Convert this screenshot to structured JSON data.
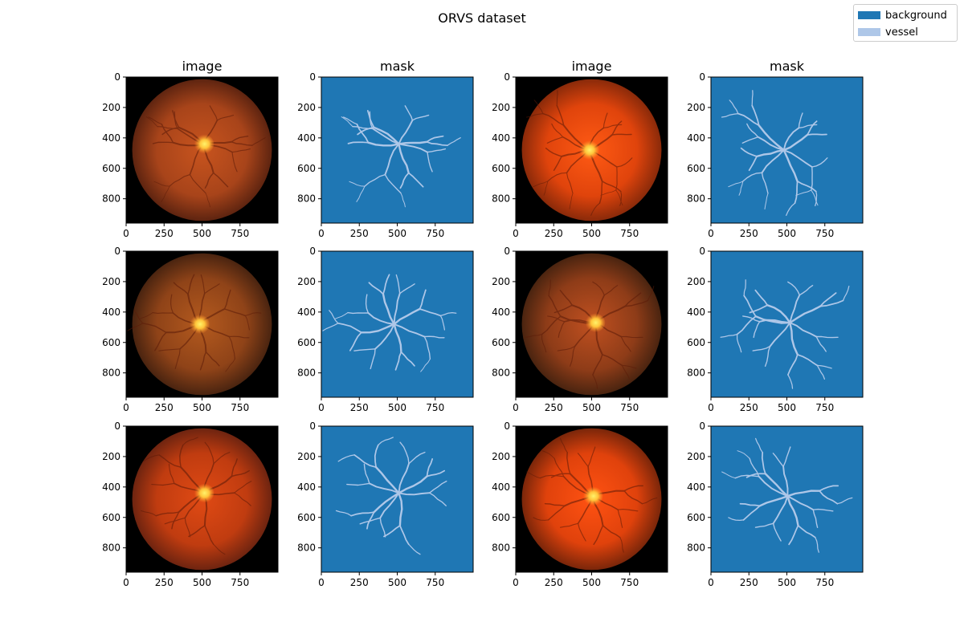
{
  "figure": {
    "title": "ORVS dataset"
  },
  "legend": {
    "placement": "top-right",
    "items": [
      {
        "label": "background",
        "color": "#1f77b4"
      },
      {
        "label": "vessel",
        "color": "#aec7e8"
      }
    ]
  },
  "chart_data": [
    {
      "type": "heatmap",
      "row": 1,
      "col": 1,
      "title": "image",
      "content": "fundus-photo",
      "xticks": [
        0,
        250,
        500,
        750
      ],
      "yticks": [
        0,
        200,
        400,
        600,
        800
      ],
      "xlim": [
        0,
        1000
      ],
      "ylim": [
        960,
        0
      ]
    },
    {
      "type": "heatmap",
      "row": 1,
      "col": 2,
      "title": "mask",
      "content": "vessel-mask",
      "xticks": [
        0,
        250,
        500,
        750
      ],
      "yticks": [
        0,
        200,
        400,
        600,
        800
      ],
      "xlim": [
        0,
        1000
      ],
      "ylim": [
        960,
        0
      ]
    },
    {
      "type": "heatmap",
      "row": 1,
      "col": 3,
      "title": "image",
      "content": "fundus-photo",
      "xticks": [
        0,
        250,
        500,
        750
      ],
      "yticks": [
        0,
        200,
        400,
        600,
        800
      ],
      "xlim": [
        0,
        1000
      ],
      "ylim": [
        960,
        0
      ]
    },
    {
      "type": "heatmap",
      "row": 1,
      "col": 4,
      "title": "mask",
      "content": "vessel-mask",
      "xticks": [
        0,
        250,
        500,
        750
      ],
      "yticks": [
        0,
        200,
        400,
        600,
        800
      ],
      "xlim": [
        0,
        1000
      ],
      "ylim": [
        960,
        0
      ]
    },
    {
      "type": "heatmap",
      "row": 2,
      "col": 1,
      "title": "",
      "content": "fundus-photo",
      "xticks": [
        0,
        250,
        500,
        750
      ],
      "yticks": [
        0,
        200,
        400,
        600,
        800
      ],
      "xlim": [
        0,
        1000
      ],
      "ylim": [
        960,
        0
      ]
    },
    {
      "type": "heatmap",
      "row": 2,
      "col": 2,
      "title": "",
      "content": "vessel-mask",
      "xticks": [
        0,
        250,
        500,
        750
      ],
      "yticks": [
        0,
        200,
        400,
        600,
        800
      ],
      "xlim": [
        0,
        1000
      ],
      "ylim": [
        960,
        0
      ]
    },
    {
      "type": "heatmap",
      "row": 2,
      "col": 3,
      "title": "",
      "content": "fundus-photo",
      "xticks": [
        0,
        250,
        500,
        750
      ],
      "yticks": [
        0,
        200,
        400,
        600,
        800
      ],
      "xlim": [
        0,
        1000
      ],
      "ylim": [
        960,
        0
      ]
    },
    {
      "type": "heatmap",
      "row": 2,
      "col": 4,
      "title": "",
      "content": "vessel-mask",
      "xticks": [
        0,
        250,
        500,
        750
      ],
      "yticks": [
        0,
        200,
        400,
        600,
        800
      ],
      "xlim": [
        0,
        1000
      ],
      "ylim": [
        960,
        0
      ]
    },
    {
      "type": "heatmap",
      "row": 3,
      "col": 1,
      "title": "",
      "content": "fundus-photo",
      "xticks": [
        0,
        250,
        500,
        750
      ],
      "yticks": [
        0,
        200,
        400,
        600,
        800
      ],
      "xlim": [
        0,
        1000
      ],
      "ylim": [
        960,
        0
      ]
    },
    {
      "type": "heatmap",
      "row": 3,
      "col": 2,
      "title": "",
      "content": "vessel-mask",
      "xticks": [
        0,
        250,
        500,
        750
      ],
      "yticks": [
        0,
        200,
        400,
        600,
        800
      ],
      "xlim": [
        0,
        1000
      ],
      "ylim": [
        960,
        0
      ]
    },
    {
      "type": "heatmap",
      "row": 3,
      "col": 3,
      "title": "",
      "content": "fundus-photo",
      "xticks": [
        0,
        250,
        500,
        750
      ],
      "yticks": [
        0,
        200,
        400,
        600,
        800
      ],
      "xlim": [
        0,
        1000
      ],
      "ylim": [
        960,
        0
      ]
    },
    {
      "type": "heatmap",
      "row": 3,
      "col": 4,
      "title": "",
      "content": "vessel-mask",
      "xticks": [
        0,
        250,
        500,
        750
      ],
      "yticks": [
        0,
        200,
        400,
        600,
        800
      ],
      "xlim": [
        0,
        1000
      ],
      "ylim": [
        960,
        0
      ]
    }
  ]
}
